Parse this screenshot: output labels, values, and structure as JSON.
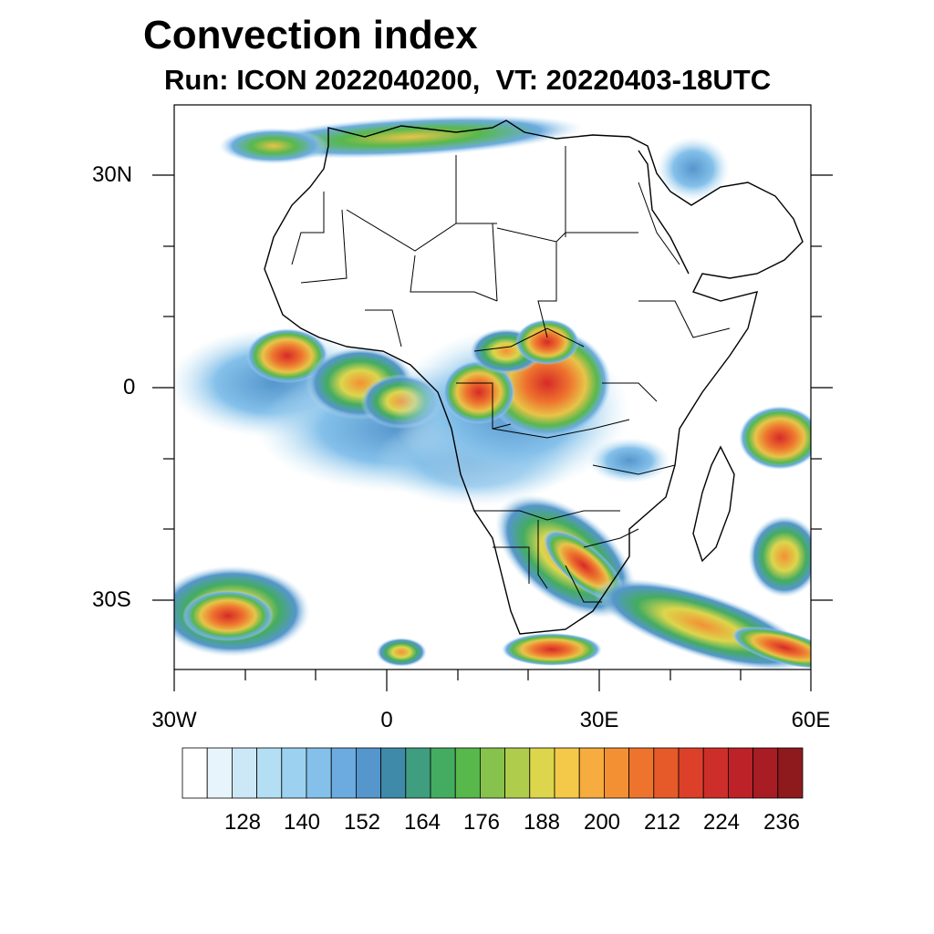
{
  "title": "Convection index",
  "subtitle": "Run: ICON 2022040200,  VT: 20220403-18UTC",
  "map": {
    "projection": "lat-lon",
    "lon_range": [
      -30,
      60
    ],
    "lat_range": [
      -40,
      40
    ],
    "y_labels": [
      "30N",
      "0",
      "30S"
    ],
    "x_labels": [
      "30W",
      "0",
      "30E",
      "60E"
    ]
  },
  "colorbar": {
    "labels": [
      "128",
      "140",
      "152",
      "164",
      "176",
      "188",
      "200",
      "212",
      "224",
      "236"
    ],
    "colors": [
      "#ffffff",
      "#e8f4fc",
      "#cce8f6",
      "#b4def4",
      "#9cd2f0",
      "#84c0ea",
      "#6cabe0",
      "#5596cc",
      "#3f8aa8",
      "#3f9e80",
      "#44ac60",
      "#58b84c",
      "#86c24c",
      "#b0cc4c",
      "#dcd64c",
      "#f4c848",
      "#f6ac3e",
      "#f49034",
      "#ee742e",
      "#e65a2a",
      "#dc4028",
      "#ce2e2a",
      "#bc2228",
      "#a81c24",
      "#8e1a1e"
    ]
  }
}
